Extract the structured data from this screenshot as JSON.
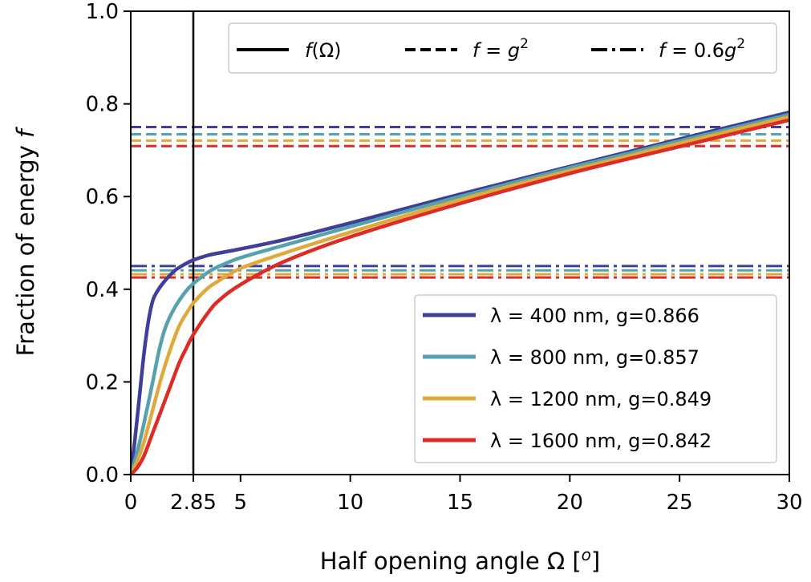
{
  "chart_data": {
    "type": "line",
    "xlabel": "Half opening angle Ω [",
    "xlabel_sup": "o",
    "xlabel_end": "]",
    "ylabel": "Fraction of energy ",
    "ylabel_var": "f",
    "xlim": [
      0,
      30
    ],
    "ylim": [
      0,
      1
    ],
    "xticks": [
      {
        "value": 0,
        "label": "0"
      },
      {
        "value": 2.85,
        "label": "2.85"
      },
      {
        "value": 5,
        "label": "5"
      },
      {
        "value": 10,
        "label": "10"
      },
      {
        "value": 15,
        "label": "15"
      },
      {
        "value": 20,
        "label": "20"
      },
      {
        "value": 25,
        "label": "25"
      },
      {
        "value": 30,
        "label": "30"
      }
    ],
    "yticks": [
      {
        "value": 0.0,
        "label": "0.0"
      },
      {
        "value": 0.2,
        "label": "0.2"
      },
      {
        "value": 0.4,
        "label": "0.4"
      },
      {
        "value": 0.6,
        "label": "0.6"
      },
      {
        "value": 0.8,
        "label": "0.8"
      },
      {
        "value": 1.0,
        "label": "1.0"
      }
    ],
    "vline_x": 2.85,
    "line_style_legend": [
      {
        "style": "solid",
        "label": "f(Ω)"
      },
      {
        "style": "dashed",
        "label": "f = g²"
      },
      {
        "style": "dashdot",
        "label": "f = 0.6g²"
      }
    ],
    "series": [
      {
        "name": "λ = 400 nm, g=0.866",
        "color": "#3f3f99",
        "g": 0.866,
        "x": [
          0,
          0.2,
          0.4,
          0.6,
          0.8,
          1.0,
          1.2,
          1.5,
          2.0,
          2.5,
          2.85,
          3.5,
          4.0,
          5.0,
          7.0,
          10.0,
          15.0,
          20.0,
          25.0,
          30.0
        ],
        "y": [
          0,
          0.08,
          0.17,
          0.26,
          0.33,
          0.375,
          0.395,
          0.415,
          0.44,
          0.455,
          0.463,
          0.473,
          0.478,
          0.487,
          0.507,
          0.543,
          0.605,
          0.665,
          0.724,
          0.782
        ]
      },
      {
        "name": "λ = 800 nm, g=0.857",
        "color": "#55a2ad",
        "g": 0.857,
        "x": [
          0,
          0.3,
          0.6,
          1.0,
          1.3,
          1.6,
          2.0,
          2.5,
          2.85,
          3.5,
          4.0,
          5.0,
          7.0,
          10.0,
          15.0,
          20.0,
          25.0,
          30.0
        ],
        "y": [
          0,
          0.05,
          0.11,
          0.2,
          0.27,
          0.32,
          0.36,
          0.395,
          0.412,
          0.436,
          0.449,
          0.468,
          0.495,
          0.535,
          0.6,
          0.662,
          0.72,
          0.777
        ]
      },
      {
        "name": "λ = 1200 nm, g=0.849",
        "color": "#e0a93c",
        "g": 0.849,
        "x": [
          0,
          0.3,
          0.6,
          1.0,
          1.4,
          1.8,
          2.2,
          2.5,
          2.85,
          3.5,
          4.0,
          5.0,
          7.0,
          10.0,
          15.0,
          20.0,
          25.0,
          30.0
        ],
        "y": [
          0,
          0.03,
          0.07,
          0.14,
          0.21,
          0.27,
          0.32,
          0.345,
          0.37,
          0.402,
          0.418,
          0.445,
          0.478,
          0.523,
          0.593,
          0.656,
          0.715,
          0.772
        ]
      },
      {
        "name": "λ = 1600 nm, g=0.842",
        "color": "#dd2b25",
        "g": 0.842,
        "x": [
          0,
          0.3,
          0.6,
          1.0,
          1.4,
          1.8,
          2.2,
          2.5,
          2.85,
          3.5,
          4.0,
          5.0,
          7.0,
          10.0,
          15.0,
          20.0,
          25.0,
          30.0
        ],
        "y": [
          0,
          0.015,
          0.04,
          0.09,
          0.14,
          0.19,
          0.24,
          0.27,
          0.302,
          0.348,
          0.375,
          0.41,
          0.46,
          0.513,
          0.585,
          0.65,
          0.708,
          0.765
        ]
      }
    ]
  }
}
